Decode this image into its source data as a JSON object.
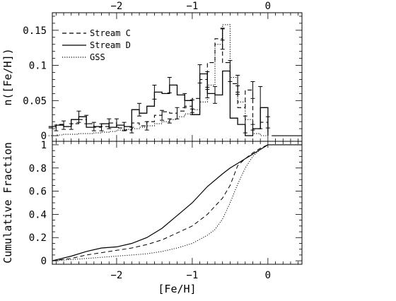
{
  "chart_data": [
    {
      "type": "line",
      "ylabel": "n([Fe/H])",
      "xlim": [
        -2.85,
        0.45
      ],
      "ylim": [
        -0.008,
        0.175
      ],
      "yticks": [
        {
          "v": 0,
          "label": "0"
        },
        {
          "v": 0.05,
          "label": "0.05"
        },
        {
          "v": 0.1,
          "label": "0.1"
        },
        {
          "v": 0.15,
          "label": "0.15"
        }
      ],
      "top_xticks": [
        {
          "v": -2,
          "label": "−2"
        },
        {
          "v": -1,
          "label": "−1"
        },
        {
          "v": 0,
          "label": "0"
        }
      ],
      "legend_position": "top-left",
      "bin_width": 0.1,
      "series": [
        {
          "name": "Stream C",
          "style": "dashed",
          "bins": [
            [
              -2.85,
              0.011
            ],
            [
              -2.75,
              0.016
            ],
            [
              -2.65,
              0.013
            ],
            [
              -2.55,
              0.017
            ],
            [
              -2.45,
              0.023
            ],
            [
              -2.35,
              0.017
            ],
            [
              -2.25,
              0.012
            ],
            [
              -2.15,
              0.013
            ],
            [
              -2.05,
              0.018
            ],
            [
              -1.95,
              0.011
            ],
            [
              -1.85,
              0.008
            ],
            [
              -1.75,
              0.018
            ],
            [
              -1.65,
              0.014
            ],
            [
              -1.55,
              0.02
            ],
            [
              -1.45,
              0.029
            ],
            [
              -1.35,
              0.034
            ],
            [
              -1.25,
              0.032
            ],
            [
              -1.15,
              0.035
            ],
            [
              -1.05,
              0.042
            ],
            [
              -0.95,
              0.053
            ],
            [
              -0.85,
              0.08
            ],
            [
              -0.75,
              0.104
            ],
            [
              -0.65,
              0.138
            ],
            [
              -0.55,
              0.104
            ],
            [
              -0.45,
              0.074
            ],
            [
              -0.35,
              0.04
            ],
            [
              -0.25,
              0.065
            ],
            [
              -0.15,
              0.01
            ],
            [
              -0.05,
              0.019
            ]
          ],
          "errors": [
            [
              -2.8,
              0.011,
              0.004
            ],
            [
              -2.6,
              0.013,
              0.004
            ],
            [
              -2.4,
              0.023,
              0.006
            ],
            [
              -2.2,
              0.012,
              0.005
            ],
            [
              -2.0,
              0.018,
              0.006
            ],
            [
              -1.8,
              0.008,
              0.004
            ],
            [
              -1.6,
              0.014,
              0.006
            ],
            [
              -1.4,
              0.029,
              0.007
            ],
            [
              -1.2,
              0.032,
              0.008
            ],
            [
              -1.0,
              0.042,
              0.009
            ],
            [
              -0.8,
              0.08,
              0.011
            ],
            [
              -0.6,
              0.138,
              0.015
            ],
            [
              -0.4,
              0.074,
              0.012
            ],
            [
              -0.2,
              0.065,
              0.012
            ],
            [
              0.0,
              0.019,
              0.008
            ]
          ]
        },
        {
          "name": "Stream D",
          "style": "solid",
          "bins": [
            [
              -2.85,
              0.013
            ],
            [
              -2.75,
              0.015
            ],
            [
              -2.65,
              0.013
            ],
            [
              -2.55,
              0.023
            ],
            [
              -2.45,
              0.027
            ],
            [
              -2.35,
              0.012
            ],
            [
              -2.25,
              0.013
            ],
            [
              -2.15,
              0.017
            ],
            [
              -2.05,
              0.012
            ],
            [
              -1.95,
              0.015
            ],
            [
              -1.85,
              0.013
            ],
            [
              -1.75,
              0.037
            ],
            [
              -1.65,
              0.032
            ],
            [
              -1.55,
              0.042
            ],
            [
              -1.45,
              0.062
            ],
            [
              -1.35,
              0.06
            ],
            [
              -1.25,
              0.072
            ],
            [
              -1.15,
              0.058
            ],
            [
              -1.05,
              0.05
            ],
            [
              -0.95,
              0.03
            ],
            [
              -0.85,
              0.088
            ],
            [
              -0.75,
              0.06
            ],
            [
              -0.65,
              0.058
            ],
            [
              -0.55,
              0.092
            ],
            [
              -0.45,
              0.025
            ],
            [
              -0.35,
              0.016
            ],
            [
              -0.25,
              0.0
            ],
            [
              -0.15,
              0.01
            ],
            [
              -0.05,
              0.04
            ]
          ],
          "errors": [
            [
              -2.7,
              0.015,
              0.006
            ],
            [
              -2.5,
              0.027,
              0.008
            ],
            [
              -2.3,
              0.013,
              0.006
            ],
            [
              -2.1,
              0.017,
              0.007
            ],
            [
              -1.9,
              0.013,
              0.006
            ],
            [
              -1.7,
              0.037,
              0.009
            ],
            [
              -1.5,
              0.062,
              0.01
            ],
            [
              -1.3,
              0.072,
              0.011
            ],
            [
              -1.1,
              0.05,
              0.01
            ],
            [
              -0.9,
              0.088,
              0.013
            ],
            [
              -0.7,
              0.058,
              0.012
            ],
            [
              -0.5,
              0.092,
              0.015
            ],
            [
              -0.3,
              0.016,
              0.012
            ],
            [
              -0.1,
              0.04,
              0.03
            ]
          ]
        },
        {
          "name": "GSS",
          "style": "dotted",
          "bins": [
            [
              -2.85,
              0.0
            ],
            [
              -2.75,
              0.001
            ],
            [
              -2.65,
              0.002
            ],
            [
              -2.55,
              0.002
            ],
            [
              -2.45,
              0.003
            ],
            [
              -2.35,
              0.003
            ],
            [
              -2.25,
              0.004
            ],
            [
              -2.15,
              0.005
            ],
            [
              -2.05,
              0.006
            ],
            [
              -1.95,
              0.008
            ],
            [
              -1.85,
              0.009
            ],
            [
              -1.75,
              0.01
            ],
            [
              -1.65,
              0.012
            ],
            [
              -1.55,
              0.014
            ],
            [
              -1.45,
              0.017
            ],
            [
              -1.35,
              0.02
            ],
            [
              -1.25,
              0.023
            ],
            [
              -1.15,
              0.027
            ],
            [
              -1.05,
              0.031
            ],
            [
              -0.95,
              0.037
            ],
            [
              -0.85,
              0.048
            ],
            [
              -0.75,
              0.072
            ],
            [
              -0.65,
              0.13
            ],
            [
              -0.55,
              0.158
            ],
            [
              -0.45,
              0.083
            ],
            [
              -0.35,
              0.048
            ],
            [
              -0.25,
              0.023
            ],
            [
              -0.15,
              0.003
            ],
            [
              -0.05,
              0.0
            ]
          ],
          "errors": [
            [
              -1.3,
              0.021,
              0.003
            ],
            [
              -1.0,
              0.034,
              0.004
            ],
            [
              -0.8,
              0.06,
              0.006
            ],
            [
              -0.6,
              0.144,
              0.008
            ],
            [
              -0.4,
              0.065,
              0.006
            ],
            [
              -0.2,
              0.012,
              0.004
            ]
          ]
        }
      ]
    },
    {
      "type": "line",
      "xlabel": "[Fe/H]",
      "ylabel": "Cumulative Fraction",
      "xlim": [
        -2.85,
        0.45
      ],
      "ylim": [
        -0.03,
        1.03
      ],
      "yticks": [
        {
          "v": 0,
          "label": "0"
        },
        {
          "v": 0.2,
          "label": "0.2"
        },
        {
          "v": 0.4,
          "label": "0.4"
        },
        {
          "v": 0.6,
          "label": "0.6"
        },
        {
          "v": 0.8,
          "label": "0.8"
        },
        {
          "v": 1,
          "label": "1"
        }
      ],
      "xticks": [
        {
          "v": -2,
          "label": "−2"
        },
        {
          "v": -1,
          "label": "−1"
        },
        {
          "v": 0,
          "label": "0"
        }
      ],
      "series": [
        {
          "name": "Stream C",
          "style": "dashed",
          "x": [
            -2.85,
            -2.6,
            -2.4,
            -2.2,
            -2.0,
            -1.8,
            -1.6,
            -1.4,
            -1.2,
            -1.0,
            -0.8,
            -0.6,
            -0.5,
            -0.4,
            -0.3,
            -0.2,
            -0.1,
            0.0
          ],
          "y": [
            0.0,
            0.02,
            0.05,
            0.07,
            0.09,
            0.11,
            0.14,
            0.18,
            0.24,
            0.3,
            0.4,
            0.54,
            0.65,
            0.82,
            0.88,
            0.93,
            0.97,
            1.0
          ]
        },
        {
          "name": "Stream D",
          "style": "solid",
          "x": [
            -2.85,
            -2.6,
            -2.4,
            -2.2,
            -2.0,
            -1.8,
            -1.6,
            -1.4,
            -1.2,
            -1.0,
            -0.8,
            -0.6,
            -0.5,
            -0.4,
            -0.3,
            -0.2,
            -0.1,
            0.0
          ],
          "y": [
            0.0,
            0.04,
            0.08,
            0.11,
            0.12,
            0.15,
            0.2,
            0.28,
            0.39,
            0.5,
            0.64,
            0.75,
            0.8,
            0.84,
            0.88,
            0.92,
            0.96,
            1.0
          ]
        },
        {
          "name": "GSS",
          "style": "dotted",
          "x": [
            -2.85,
            -2.6,
            -2.4,
            -2.2,
            -2.0,
            -1.8,
            -1.6,
            -1.4,
            -1.2,
            -1.0,
            -0.8,
            -0.7,
            -0.6,
            -0.5,
            -0.4,
            -0.3,
            -0.2,
            -0.1,
            0.0
          ],
          "y": [
            0.0,
            0.01,
            0.02,
            0.03,
            0.04,
            0.05,
            0.06,
            0.08,
            0.11,
            0.15,
            0.22,
            0.27,
            0.36,
            0.5,
            0.66,
            0.8,
            0.9,
            0.96,
            1.0
          ]
        }
      ]
    }
  ]
}
